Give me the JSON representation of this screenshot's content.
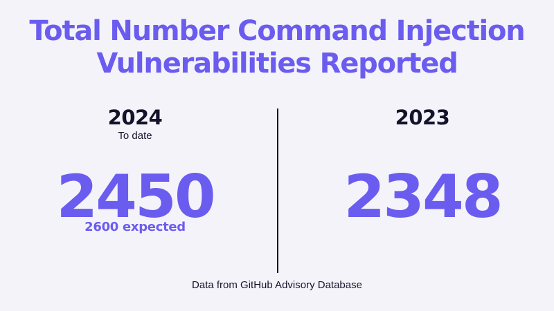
{
  "title": {
    "line1": "Total Number Command Injection",
    "line2": "Vulnerabilities Reported"
  },
  "left": {
    "year": "2024",
    "subtitle": "To date",
    "value": "2450",
    "note": "2600 expected"
  },
  "right": {
    "year": "2023",
    "value": "2348"
  },
  "footer": "Data from GitHub Advisory Database",
  "colors": {
    "accent": "#6b5cf0",
    "text": "#13132a",
    "background": "#f4f3fa"
  }
}
